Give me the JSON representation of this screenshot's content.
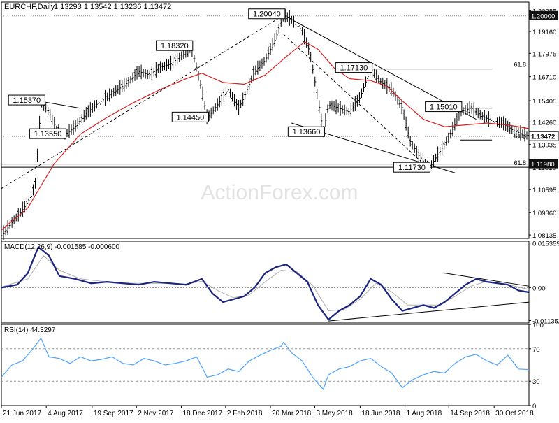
{
  "header": {
    "symbol_label": "EURCHF,Daily",
    "ohlc_label": "1.13293 1.13542 1.13236 1.13472"
  },
  "watermark": "ActionForex.com",
  "chart_data": [
    {
      "type": "candlestick",
      "title": "EURCHF,Daily 1.13293 1.13542 1.13236 1.13472",
      "ylim": [
        1.0795,
        1.2075
      ],
      "price_ticks": [
        "1.20285",
        "1.19160",
        "1.17975",
        "1.16710",
        "1.15405",
        "1.14260",
        "1.13035",
        "1.11810",
        "1.10595",
        "1.09360",
        "1.08135"
      ],
      "price_tick_values": [
        1.20285,
        1.1916,
        1.17975,
        1.1671,
        1.15405,
        1.1426,
        1.13035,
        1.1181,
        1.10595,
        1.0936,
        1.08135
      ],
      "last_price_tag": "1.13472",
      "last_price": 1.13472,
      "level_tags": [
        {
          "label": "1.20000",
          "value": 1.2,
          "style": "dark"
        },
        {
          "label": "1.11980",
          "value": 1.1198,
          "style": "dark"
        }
      ],
      "annotations": [
        {
          "label": "1.20040",
          "t": 0.535,
          "value": 1.2004
        },
        {
          "label": "1.18320",
          "t": 0.36,
          "value": 1.1832
        },
        {
          "label": "1.15370",
          "t": 0.08,
          "value": 1.1537
        },
        {
          "label": "1.13550",
          "t": 0.12,
          "value": 1.1355
        },
        {
          "label": "1.14450",
          "t": 0.39,
          "value": 1.1445
        },
        {
          "label": "1.17130",
          "t": 0.7,
          "value": 1.1713
        },
        {
          "label": "1.13660",
          "t": 0.61,
          "value": 1.1366
        },
        {
          "label": "1.15010",
          "t": 0.87,
          "value": 1.1501
        },
        {
          "label": "1.11730",
          "t": 0.81,
          "value": 1.1173
        }
      ],
      "fib_labels": [
        {
          "label": "61.8",
          "value": 1.1713
        },
        {
          "label": "61.8",
          "value": 1.1328
        },
        {
          "label": "61.8",
          "value": 1.1181
        }
      ],
      "price_path": [
        [
          0,
          1.081
        ],
        [
          0.02,
          1.088
        ],
        [
          0.04,
          1.095
        ],
        [
          0.055,
          1.101
        ],
        [
          0.065,
          1.11
        ],
        [
          0.075,
          1.1537
        ],
        [
          0.09,
          1.148
        ],
        [
          0.105,
          1.138
        ],
        [
          0.12,
          1.1355
        ],
        [
          0.14,
          1.14
        ],
        [
          0.16,
          1.147
        ],
        [
          0.18,
          1.152
        ],
        [
          0.2,
          1.156
        ],
        [
          0.22,
          1.16
        ],
        [
          0.24,
          1.164
        ],
        [
          0.26,
          1.17
        ],
        [
          0.28,
          1.168
        ],
        [
          0.3,
          1.172
        ],
        [
          0.32,
          1.174
        ],
        [
          0.34,
          1.178
        ],
        [
          0.36,
          1.1832
        ],
        [
          0.38,
          1.16
        ],
        [
          0.39,
          1.1445
        ],
        [
          0.41,
          1.152
        ],
        [
          0.43,
          1.16
        ],
        [
          0.45,
          1.15
        ],
        [
          0.46,
          1.156
        ],
        [
          0.48,
          1.17
        ],
        [
          0.5,
          1.176
        ],
        [
          0.52,
          1.188
        ],
        [
          0.535,
          1.2004
        ],
        [
          0.55,
          1.198
        ],
        [
          0.57,
          1.192
        ],
        [
          0.585,
          1.18
        ],
        [
          0.6,
          1.155
        ],
        [
          0.61,
          1.1366
        ],
        [
          0.62,
          1.152
        ],
        [
          0.64,
          1.15
        ],
        [
          0.66,
          1.148
        ],
        [
          0.68,
          1.156
        ],
        [
          0.7,
          1.1713
        ],
        [
          0.72,
          1.164
        ],
        [
          0.74,
          1.16
        ],
        [
          0.76,
          1.15
        ],
        [
          0.775,
          1.132
        ],
        [
          0.79,
          1.125
        ],
        [
          0.81,
          1.1173
        ],
        [
          0.83,
          1.126
        ],
        [
          0.85,
          1.135
        ],
        [
          0.87,
          1.148
        ],
        [
          0.89,
          1.1501
        ],
        [
          0.91,
          1.146
        ],
        [
          0.93,
          1.143
        ],
        [
          0.95,
          1.142
        ],
        [
          0.97,
          1.138
        ],
        [
          1.0,
          1.13472
        ]
      ],
      "ma_path": [
        [
          0,
          1.084
        ],
        [
          0.05,
          1.096
        ],
        [
          0.1,
          1.12
        ],
        [
          0.15,
          1.136
        ],
        [
          0.2,
          1.145
        ],
        [
          0.25,
          1.153
        ],
        [
          0.3,
          1.16
        ],
        [
          0.35,
          1.166
        ],
        [
          0.38,
          1.169
        ],
        [
          0.42,
          1.164
        ],
        [
          0.46,
          1.163
        ],
        [
          0.5,
          1.168
        ],
        [
          0.54,
          1.178
        ],
        [
          0.575,
          1.186
        ],
        [
          0.6,
          1.182
        ],
        [
          0.63,
          1.172
        ],
        [
          0.66,
          1.166
        ],
        [
          0.7,
          1.165
        ],
        [
          0.73,
          1.162
        ],
        [
          0.76,
          1.154
        ],
        [
          0.8,
          1.144
        ],
        [
          0.84,
          1.14
        ],
        [
          0.88,
          1.141
        ],
        [
          0.92,
          1.142
        ],
        [
          0.96,
          1.141
        ],
        [
          1.0,
          1.139
        ]
      ],
      "trendlines": [
        {
          "from": [
            0,
            1.1065
          ],
          "to": [
            0.535,
            1.2004
          ],
          "style": "dashed"
        },
        {
          "from": [
            0.075,
            1.1537
          ],
          "to": [
            0.15,
            1.15
          ],
          "style": "solid"
        },
        {
          "from": [
            0.535,
            1.2004
          ],
          "to": [
            0.9,
            1.144
          ],
          "style": "solid"
        },
        {
          "from": [
            0.535,
            1.19
          ],
          "to": [
            0.81,
            1.1173
          ],
          "style": "dashed"
        },
        {
          "from": [
            0.55,
            1.142
          ],
          "to": [
            0.86,
            1.115
          ],
          "style": "solid"
        },
        {
          "from": [
            0.7,
            1.1713
          ],
          "to": [
            0.93,
            1.1713
          ],
          "style": "solid"
        },
        {
          "from": [
            0.87,
            1.1501
          ],
          "to": [
            0.93,
            1.1501
          ],
          "style": "solid"
        },
        {
          "from": [
            0.87,
            1.1328
          ],
          "to": [
            0.93,
            1.1328
          ],
          "style": "solid"
        },
        {
          "from": [
            0,
            1.1198
          ],
          "to": [
            1,
            1.1198
          ],
          "style": "solid"
        },
        {
          "from": [
            0,
            1.1181
          ],
          "to": [
            1,
            1.1181
          ],
          "style": "solid"
        },
        {
          "from": [
            0,
            1.2
          ],
          "to": [
            1,
            1.2
          ],
          "style": "dotted"
        },
        {
          "from": [
            0,
            1.13472
          ],
          "to": [
            1,
            1.13472
          ],
          "style": "dotted"
        }
      ],
      "series": [
        {
          "name": "EURCHF"
        },
        {
          "name": "MA"
        }
      ]
    },
    {
      "type": "line",
      "title": "MACD(12,26,9) -0.001585 -0.000600",
      "ylim": [
        -0.0122,
        0.016
      ],
      "tick_labels": [
        "0.015359",
        "0.00",
        "-0.011352"
      ],
      "tick_values": [
        0.015359,
        0.0,
        -0.011352
      ],
      "series": [
        {
          "name": "MACD",
          "points": [
            [
              0,
              0.0
            ],
            [
              0.03,
              0.001
            ],
            [
              0.05,
              0.005
            ],
            [
              0.07,
              0.014
            ],
            [
              0.09,
              0.011
            ],
            [
              0.11,
              0.004
            ],
            [
              0.14,
              0.003
            ],
            [
              0.17,
              0.0015
            ],
            [
              0.2,
              0.002
            ],
            [
              0.23,
              0.0015
            ],
            [
              0.26,
              0.001
            ],
            [
              0.29,
              0.002
            ],
            [
              0.32,
              0.0015
            ],
            [
              0.35,
              0.001
            ],
            [
              0.38,
              0.003
            ],
            [
              0.4,
              -0.002
            ],
            [
              0.42,
              -0.005
            ],
            [
              0.44,
              -0.004
            ],
            [
              0.46,
              -0.003
            ],
            [
              0.48,
              0.0
            ],
            [
              0.5,
              0.005
            ],
            [
              0.52,
              0.007
            ],
            [
              0.54,
              0.008
            ],
            [
              0.56,
              0.005
            ],
            [
              0.58,
              0.002
            ],
            [
              0.6,
              -0.006
            ],
            [
              0.62,
              -0.011
            ],
            [
              0.64,
              -0.008
            ],
            [
              0.66,
              -0.006
            ],
            [
              0.68,
              -0.003
            ],
            [
              0.7,
              0.003
            ],
            [
              0.72,
              0.001
            ],
            [
              0.74,
              -0.004
            ],
            [
              0.76,
              -0.008
            ],
            [
              0.78,
              -0.007
            ],
            [
              0.8,
              -0.006
            ],
            [
              0.82,
              -0.007
            ],
            [
              0.84,
              -0.005
            ],
            [
              0.86,
              -0.002
            ],
            [
              0.88,
              0.001
            ],
            [
              0.9,
              0.003
            ],
            [
              0.92,
              0.002
            ],
            [
              0.94,
              0.0015
            ],
            [
              0.96,
              0.001
            ],
            [
              0.98,
              -0.001
            ],
            [
              1.0,
              -0.001585
            ]
          ]
        },
        {
          "name": "Signal",
          "points": [
            [
              0,
              0.0002
            ],
            [
              0.05,
              0.003
            ],
            [
              0.08,
              0.011
            ],
            [
              0.11,
              0.006
            ],
            [
              0.15,
              0.003
            ],
            [
              0.2,
              0.002
            ],
            [
              0.25,
              0.0015
            ],
            [
              0.3,
              0.0015
            ],
            [
              0.35,
              0.0012
            ],
            [
              0.38,
              0.0022
            ],
            [
              0.41,
              -0.001
            ],
            [
              0.44,
              -0.0035
            ],
            [
              0.47,
              -0.0025
            ],
            [
              0.5,
              0.002
            ],
            [
              0.53,
              0.006
            ],
            [
              0.56,
              0.0055
            ],
            [
              0.59,
              0.0008
            ],
            [
              0.62,
              -0.008
            ],
            [
              0.65,
              -0.0075
            ],
            [
              0.68,
              -0.004
            ],
            [
              0.71,
              0.0015
            ],
            [
              0.74,
              -0.0015
            ],
            [
              0.77,
              -0.006
            ],
            [
              0.8,
              -0.006
            ],
            [
              0.83,
              -0.006
            ],
            [
              0.86,
              -0.003
            ],
            [
              0.89,
              0.0005
            ],
            [
              0.92,
              0.0022
            ],
            [
              0.95,
              0.0015
            ],
            [
              0.98,
              0.0002
            ],
            [
              1.0,
              -0.0006
            ]
          ]
        }
      ],
      "trendlines": [
        {
          "from": [
            0.62,
            -0.0115
          ],
          "to": [
            1,
            -0.005
          ]
        },
        {
          "from": [
            0.84,
            0.005
          ],
          "to": [
            1,
            0.0005
          ]
        }
      ]
    },
    {
      "type": "line",
      "title": "RSI(14) 44.3297",
      "ylim": [
        0,
        100
      ],
      "tick_labels": [
        "100",
        "70",
        "30",
        "0"
      ],
      "tick_values": [
        100,
        70,
        30,
        0
      ],
      "levels": [
        70,
        30
      ],
      "series": [
        {
          "name": "RSI",
          "points": [
            [
              0,
              35
            ],
            [
              0.02,
              50
            ],
            [
              0.04,
              55
            ],
            [
              0.06,
              70
            ],
            [
              0.075,
              83
            ],
            [
              0.09,
              60
            ],
            [
              0.11,
              58
            ],
            [
              0.13,
              52
            ],
            [
              0.15,
              60
            ],
            [
              0.17,
              55
            ],
            [
              0.19,
              57
            ],
            [
              0.21,
              60
            ],
            [
              0.23,
              52
            ],
            [
              0.25,
              50
            ],
            [
              0.27,
              58
            ],
            [
              0.29,
              55
            ],
            [
              0.31,
              50
            ],
            [
              0.33,
              52
            ],
            [
              0.35,
              55
            ],
            [
              0.37,
              60
            ],
            [
              0.39,
              35
            ],
            [
              0.41,
              38
            ],
            [
              0.43,
              45
            ],
            [
              0.45,
              42
            ],
            [
              0.47,
              55
            ],
            [
              0.49,
              62
            ],
            [
              0.51,
              68
            ],
            [
              0.53,
              73
            ],
            [
              0.535,
              78
            ],
            [
              0.55,
              65
            ],
            [
              0.57,
              55
            ],
            [
              0.59,
              35
            ],
            [
              0.61,
              20
            ],
            [
              0.62,
              38
            ],
            [
              0.64,
              45
            ],
            [
              0.66,
              48
            ],
            [
              0.68,
              55
            ],
            [
              0.7,
              58
            ],
            [
              0.72,
              48
            ],
            [
              0.74,
              40
            ],
            [
              0.76,
              22
            ],
            [
              0.78,
              32
            ],
            [
              0.8,
              38
            ],
            [
              0.82,
              42
            ],
            [
              0.84,
              40
            ],
            [
              0.86,
              52
            ],
            [
              0.88,
              60
            ],
            [
              0.9,
              63
            ],
            [
              0.92,
              55
            ],
            [
              0.94,
              50
            ],
            [
              0.96,
              62
            ],
            [
              0.98,
              45
            ],
            [
              1.0,
              44.3297
            ]
          ]
        }
      ]
    }
  ],
  "x_axis": {
    "ticks": [
      {
        "label": "21 Jun 2017",
        "t": 0.0
      },
      {
        "label": "4 Aug 2017",
        "t": 0.085
      },
      {
        "label": "19 Sep 2017",
        "t": 0.172
      },
      {
        "label": "2 Nov 2017",
        "t": 0.256
      },
      {
        "label": "18 Dec 2017",
        "t": 0.341
      },
      {
        "label": "2 Feb 2018",
        "t": 0.425
      },
      {
        "label": "20 Mar 2018",
        "t": 0.51
      },
      {
        "label": "3 May 2018",
        "t": 0.594
      },
      {
        "label": "18 Jun 2018",
        "t": 0.68
      },
      {
        "label": "1 Aug 2018",
        "t": 0.765
      },
      {
        "label": "14 Sep 2018",
        "t": 0.848
      },
      {
        "label": "30 Oct 2018",
        "t": 0.934
      }
    ]
  }
}
